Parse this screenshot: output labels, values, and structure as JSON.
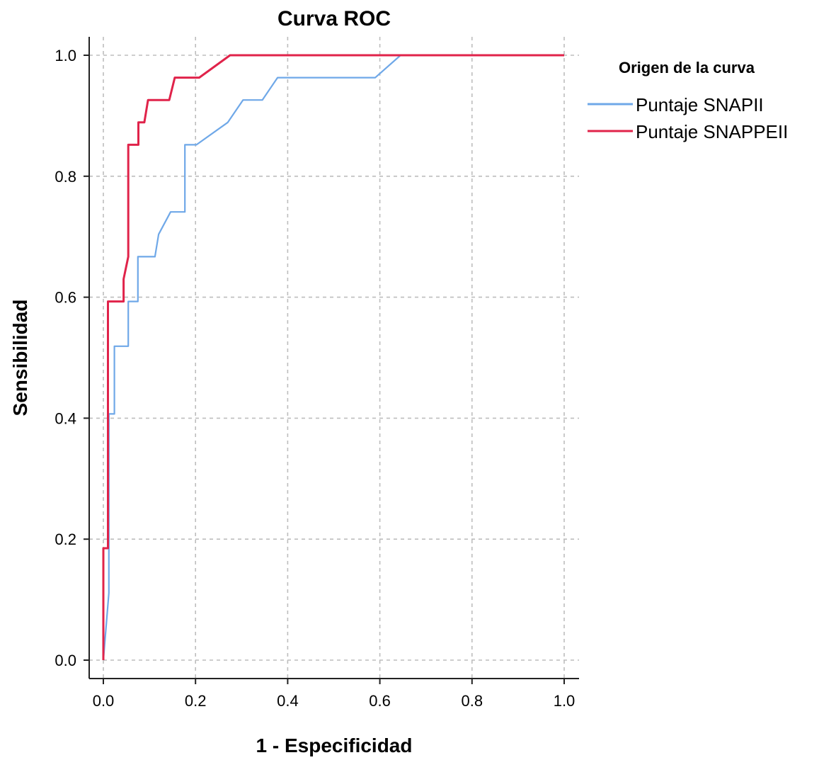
{
  "chart_data": {
    "type": "line",
    "title": "Curva ROC",
    "xlabel": "1 - Especificidad",
    "ylabel": "Sensibilidad",
    "xlim": [
      0,
      1
    ],
    "ylim": [
      0,
      1
    ],
    "xticks": [
      "0.0",
      "0.2",
      "0.4",
      "0.6",
      "0.8",
      "1.0"
    ],
    "yticks": [
      "0.0",
      "0.2",
      "0.4",
      "0.6",
      "0.8",
      "1.0"
    ],
    "grid": true,
    "grid_style": "dashed",
    "legend_title": "Origen de la curva",
    "legend_position": "top-right, outside plot",
    "series": [
      {
        "name": "Puntaje SNAPII",
        "color": "#6fa8e8",
        "points": [
          [
            0.0,
            0.0
          ],
          [
            0.012,
            0.111
          ],
          [
            0.012,
            0.407
          ],
          [
            0.024,
            0.407
          ],
          [
            0.024,
            0.519
          ],
          [
            0.054,
            0.519
          ],
          [
            0.054,
            0.593
          ],
          [
            0.075,
            0.593
          ],
          [
            0.075,
            0.667
          ],
          [
            0.112,
            0.667
          ],
          [
            0.12,
            0.704
          ],
          [
            0.146,
            0.741
          ],
          [
            0.177,
            0.741
          ],
          [
            0.177,
            0.852
          ],
          [
            0.202,
            0.852
          ],
          [
            0.27,
            0.889
          ],
          [
            0.303,
            0.926
          ],
          [
            0.345,
            0.926
          ],
          [
            0.378,
            0.963
          ],
          [
            0.59,
            0.963
          ],
          [
            0.645,
            1.0
          ],
          [
            1.0,
            1.0
          ]
        ]
      },
      {
        "name": "Puntaje SNAPPEII",
        "color": "#e0234a",
        "points": [
          [
            0.0,
            0.0
          ],
          [
            0.0,
            0.185
          ],
          [
            0.01,
            0.185
          ],
          [
            0.01,
            0.593
          ],
          [
            0.044,
            0.593
          ],
          [
            0.044,
            0.63
          ],
          [
            0.054,
            0.667
          ],
          [
            0.054,
            0.852
          ],
          [
            0.076,
            0.852
          ],
          [
            0.076,
            0.889
          ],
          [
            0.089,
            0.889
          ],
          [
            0.097,
            0.926
          ],
          [
            0.143,
            0.926
          ],
          [
            0.155,
            0.963
          ],
          [
            0.208,
            0.963
          ],
          [
            0.275,
            1.0
          ],
          [
            1.0,
            1.0
          ]
        ]
      }
    ]
  }
}
